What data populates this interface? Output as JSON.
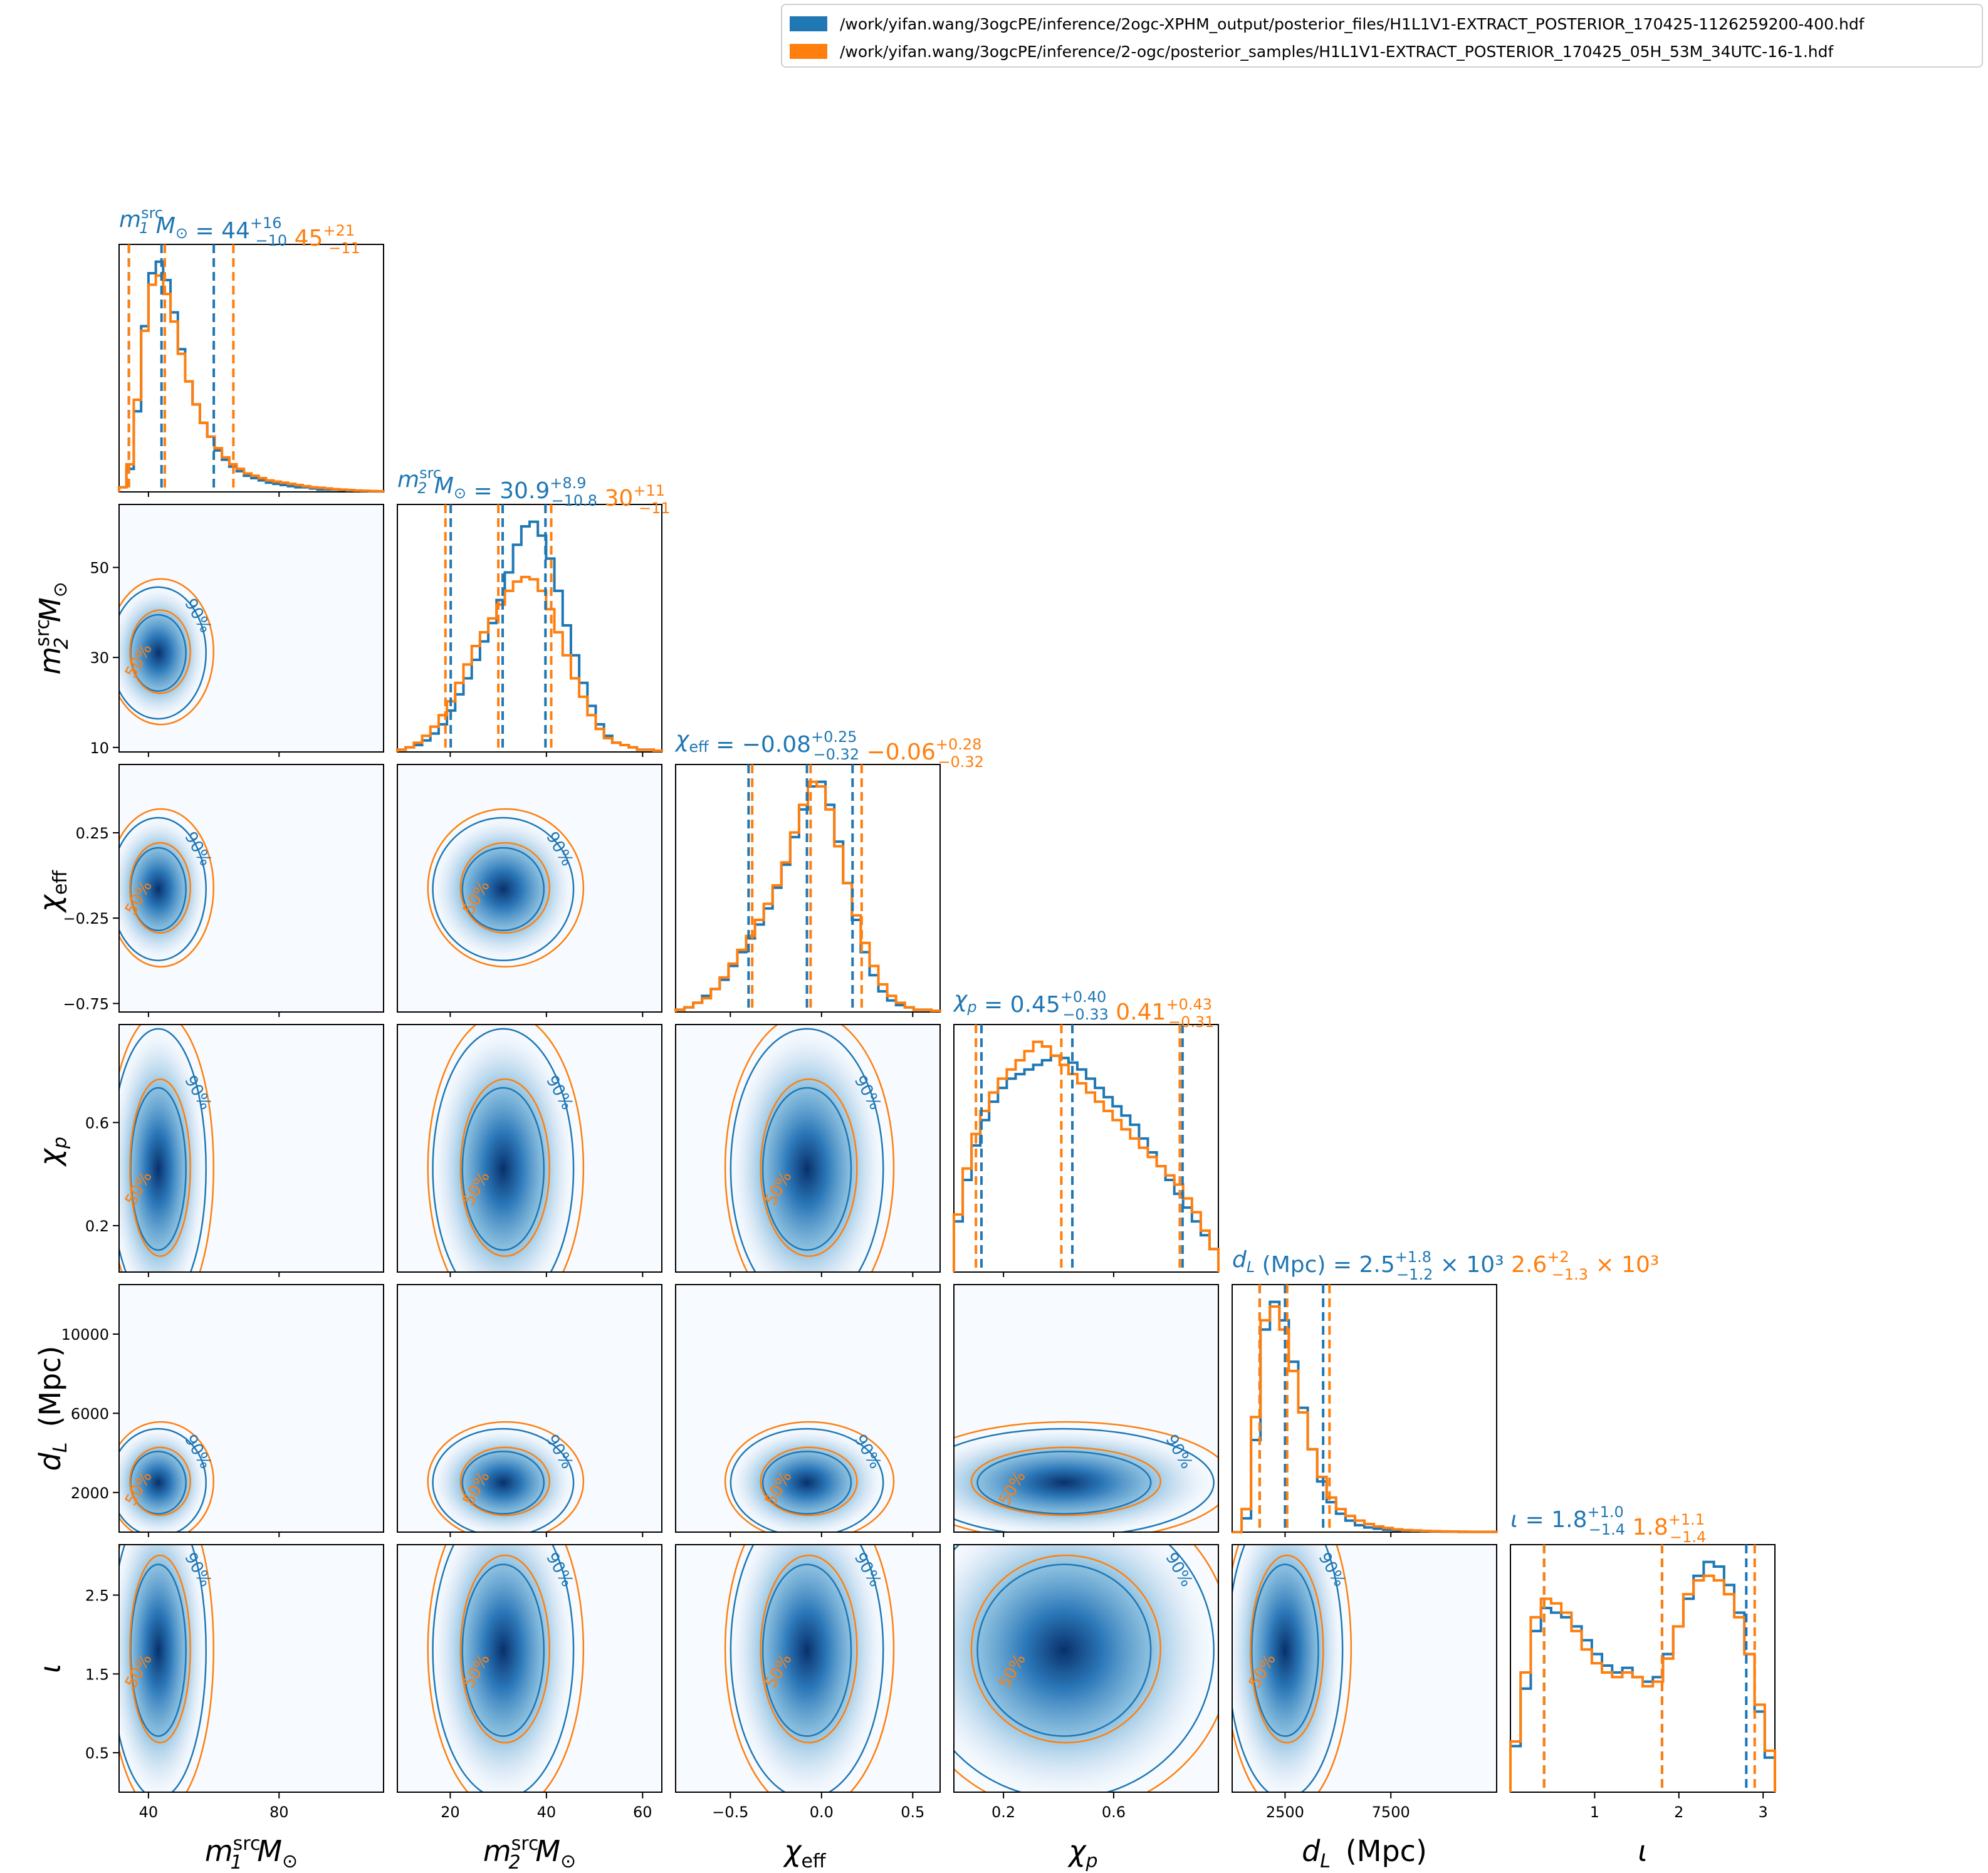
{
  "legend": {
    "items": [
      {
        "label": "/work/yifan.wang/3ogcPE/inference/2ogc-XPHM_output/posterior_files/H1L1V1-EXTRACT_POSTERIOR_170425-1126259200-400.hdf",
        "color": "#1f77b4"
      },
      {
        "label": "/work/yifan.wang/3ogcPE/inference/2-ogc/posterior_samples/H1L1V1-EXTRACT_POSTERIOR_170425_05H_53M_34UTC-16-1.hdf",
        "color": "#ff7f0e"
      }
    ]
  },
  "chart_data": {
    "type": "corner",
    "colors": {
      "blue": "#1f77b4",
      "orange": "#ff7f0e"
    },
    "params": [
      {
        "key": "m1",
        "label_main": "m",
        "label_sub": "1",
        "label_sup": "src",
        "label_tail": "M",
        "tail_sub": "⊙",
        "range": [
          31,
          112
        ],
        "ticks": [
          40,
          80
        ],
        "tick_labels": [
          "40",
          "80"
        ],
        "title_blue": {
          "prefix": "= 44",
          "sup": "+16",
          "sub": "−10"
        },
        "title_orange": {
          "prefix": "45",
          "sup": "+21",
          "sub": "−11"
        },
        "blue": {
          "median": 44,
          "lo": 34,
          "hi": 60
        },
        "orange": {
          "median": 45,
          "lo": 34,
          "hi": 66
        }
      },
      {
        "key": "m2",
        "label_main": "m",
        "label_sub": "2",
        "label_sup": "src",
        "label_tail": "M",
        "tail_sub": "⊙",
        "range": [
          9,
          64
        ],
        "ticks": [
          10,
          30,
          50
        ],
        "tick_labels": [
          "10",
          "30",
          "50"
        ],
        "xticks": [
          20,
          40,
          60
        ],
        "xtick_labels": [
          "20",
          "40",
          "60"
        ],
        "title_blue": {
          "prefix": "= 30.9",
          "sup": "+8.9",
          "sub": "−10.8"
        },
        "title_orange": {
          "prefix": "30",
          "sup": "+11",
          "sub": "−11"
        },
        "blue": {
          "median": 30.9,
          "lo": 20.1,
          "hi": 39.8
        },
        "orange": {
          "median": 30,
          "lo": 19,
          "hi": 41
        }
      },
      {
        "key": "chi_eff",
        "label_main": "χ",
        "label_sub": "eff",
        "label_sup": "",
        "label_tail": "",
        "tail_sub": "",
        "range": [
          -0.8,
          0.65
        ],
        "ticks": [
          -0.75,
          -0.25,
          0.25
        ],
        "tick_labels": [
          "−0.75",
          "−0.25",
          "0.25"
        ],
        "xticks": [
          -0.5,
          0.0,
          0.5
        ],
        "xtick_labels": [
          "−0.5",
          "0.0",
          "0.5"
        ],
        "title_blue": {
          "prefix": "= −0.08",
          "sup": "+0.25",
          "sub": "−0.32"
        },
        "title_orange": {
          "prefix": "−0.06",
          "sup": "+0.28",
          "sub": "−0.32"
        },
        "blue": {
          "median": -0.08,
          "lo": -0.4,
          "hi": 0.17
        },
        "orange": {
          "median": -0.06,
          "lo": -0.38,
          "hi": 0.22
        }
      },
      {
        "key": "chi_p",
        "label_main": "χ",
        "label_sub": "p",
        "label_sup": "",
        "label_tail": "",
        "tail_sub": "",
        "range": [
          0.02,
          0.98
        ],
        "ticks": [
          0.2,
          0.6
        ],
        "tick_labels": [
          "0.2",
          "0.6"
        ],
        "title_blue": {
          "prefix": "= 0.45",
          "sup": "+0.40",
          "sub": "−0.33"
        },
        "title_orange": {
          "prefix": "0.41",
          "sup": "+0.43",
          "sub": "−0.31"
        },
        "blue": {
          "median": 0.45,
          "lo": 0.12,
          "hi": 0.85
        },
        "orange": {
          "median": 0.41,
          "lo": 0.1,
          "hi": 0.84
        }
      },
      {
        "key": "dL",
        "label_main": "d",
        "label_sub": "L",
        "label_sup": "",
        "label_tail": "(Mpc)",
        "tail_sub": "",
        "range": [
          0,
          12500
        ],
        "ticks": [
          2000,
          6000,
          10000
        ],
        "tick_labels": [
          "2000",
          "6000",
          "10000"
        ],
        "xticks": [
          2500,
          7500
        ],
        "xtick_labels": [
          "2500",
          "7500"
        ],
        "title_blue": {
          "prefix": "(Mpc) = 2.5",
          "sup": "+1.8",
          "sub": "−1.2",
          "suffix": "× 10³"
        },
        "title_orange": {
          "prefix": "2.6",
          "sup": "+2",
          "sub": "−1.3",
          "suffix": "× 10³"
        },
        "blue": {
          "median": 2500,
          "lo": 1300,
          "hi": 4300
        },
        "orange": {
          "median": 2600,
          "lo": 1300,
          "hi": 4600
        }
      },
      {
        "key": "iota",
        "label_main": "ι",
        "label_sub": "",
        "label_sup": "",
        "label_tail": "",
        "tail_sub": "",
        "range": [
          0,
          3.14
        ],
        "ticks": [
          0.5,
          1.5,
          2.5
        ],
        "tick_labels": [
          "0.5",
          "1.5",
          "2.5"
        ],
        "xticks": [
          1,
          2,
          3
        ],
        "xtick_labels": [
          "1",
          "2",
          "3"
        ],
        "title_blue": {
          "prefix": "= 1.8",
          "sup": "+1.0",
          "sub": "−1.4"
        },
        "title_orange": {
          "prefix": "1.8",
          "sup": "+1.1",
          "sub": "−1.4"
        },
        "blue": {
          "median": 1.8,
          "lo": 0.4,
          "hi": 2.8
        },
        "orange": {
          "median": 1.8,
          "lo": 0.4,
          "hi": 2.9
        }
      }
    ],
    "hist_blue": {
      "m1": [
        0.02,
        0.1,
        0.35,
        0.72,
        0.95,
        1.0,
        0.92,
        0.78,
        0.62,
        0.48,
        0.38,
        0.3,
        0.24,
        0.18,
        0.14,
        0.11,
        0.09,
        0.07,
        0.06,
        0.05,
        0.04,
        0.035,
        0.03,
        0.025,
        0.02,
        0.02,
        0.015,
        0.01,
        0.01,
        0.01,
        0.008,
        0.006,
        0.005,
        0.004,
        0.003,
        0.002
      ],
      "m2": [
        0.01,
        0.02,
        0.03,
        0.05,
        0.08,
        0.12,
        0.18,
        0.25,
        0.32,
        0.4,
        0.48,
        0.56,
        0.66,
        0.78,
        0.9,
        0.98,
        1.0,
        0.94,
        0.84,
        0.7,
        0.55,
        0.42,
        0.3,
        0.2,
        0.12,
        0.07,
        0.04,
        0.03,
        0.02,
        0.01,
        0.01,
        0.005
      ],
      "chi_eff": [
        0.01,
        0.02,
        0.04,
        0.07,
        0.1,
        0.14,
        0.2,
        0.26,
        0.32,
        0.38,
        0.45,
        0.54,
        0.64,
        0.76,
        0.88,
        0.98,
        1.0,
        0.9,
        0.74,
        0.56,
        0.4,
        0.26,
        0.16,
        0.09,
        0.05,
        0.03,
        0.02,
        0.01,
        0.01,
        0.005
      ],
      "chi_p": [
        0.22,
        0.4,
        0.55,
        0.66,
        0.74,
        0.8,
        0.84,
        0.86,
        0.88,
        0.9,
        0.92,
        0.94,
        0.93,
        0.91,
        0.88,
        0.84,
        0.8,
        0.76,
        0.72,
        0.68,
        0.64,
        0.58,
        0.52,
        0.46,
        0.4,
        0.34,
        0.28,
        0.22,
        0.16,
        0.1
      ],
      "dL": [
        0.0,
        0.06,
        0.4,
        0.88,
        1.0,
        0.92,
        0.74,
        0.54,
        0.36,
        0.22,
        0.13,
        0.08,
        0.05,
        0.03,
        0.02,
        0.015,
        0.01,
        0.008,
        0.006,
        0.005,
        0.004,
        0.003,
        0.002,
        0.002,
        0.001,
        0.001,
        0.001,
        0.001
      ],
      "iota": [
        0.2,
        0.45,
        0.7,
        0.8,
        0.78,
        0.76,
        0.72,
        0.66,
        0.6,
        0.55,
        0.52,
        0.54,
        0.5,
        0.48,
        0.5,
        0.6,
        0.72,
        0.84,
        0.94,
        1.0,
        0.98,
        0.9,
        0.78,
        0.6,
        0.35,
        0.15
      ]
    },
    "hist_orange": {
      "m1": [
        0.02,
        0.12,
        0.4,
        0.7,
        0.9,
        0.94,
        0.86,
        0.74,
        0.6,
        0.48,
        0.38,
        0.3,
        0.24,
        0.19,
        0.15,
        0.12,
        0.1,
        0.08,
        0.07,
        0.06,
        0.05,
        0.045,
        0.04,
        0.035,
        0.03,
        0.025,
        0.02,
        0.018,
        0.015,
        0.012,
        0.01,
        0.008,
        0.006,
        0.005,
        0.004,
        0.003
      ],
      "m2": [
        0.01,
        0.02,
        0.04,
        0.07,
        0.11,
        0.16,
        0.22,
        0.3,
        0.38,
        0.46,
        0.52,
        0.58,
        0.64,
        0.7,
        0.74,
        0.76,
        0.75,
        0.7,
        0.62,
        0.52,
        0.42,
        0.32,
        0.24,
        0.16,
        0.1,
        0.06,
        0.04,
        0.03,
        0.02,
        0.01,
        0.01,
        0.005
      ],
      "chi_eff": [
        0.01,
        0.02,
        0.04,
        0.06,
        0.1,
        0.15,
        0.21,
        0.27,
        0.33,
        0.4,
        0.47,
        0.55,
        0.65,
        0.78,
        0.9,
        1.0,
        0.98,
        0.88,
        0.72,
        0.56,
        0.42,
        0.3,
        0.2,
        0.12,
        0.07,
        0.04,
        0.02,
        0.01,
        0.01,
        0.005
      ],
      "chi_p": [
        0.25,
        0.45,
        0.6,
        0.7,
        0.78,
        0.84,
        0.88,
        0.92,
        0.96,
        1.0,
        0.98,
        0.94,
        0.9,
        0.86,
        0.82,
        0.78,
        0.74,
        0.7,
        0.66,
        0.62,
        0.58,
        0.54,
        0.5,
        0.46,
        0.42,
        0.38,
        0.32,
        0.26,
        0.18,
        0.1
      ],
      "dL": [
        0.0,
        0.1,
        0.5,
        0.92,
        0.98,
        0.88,
        0.7,
        0.52,
        0.36,
        0.24,
        0.15,
        0.1,
        0.07,
        0.05,
        0.035,
        0.025,
        0.018,
        0.012,
        0.009,
        0.007,
        0.005,
        0.004,
        0.003,
        0.002,
        0.002,
        0.001,
        0.001,
        0.001
      ],
      "iota": [
        0.22,
        0.52,
        0.76,
        0.84,
        0.82,
        0.78,
        0.7,
        0.62,
        0.56,
        0.52,
        0.5,
        0.52,
        0.5,
        0.46,
        0.48,
        0.58,
        0.72,
        0.86,
        0.92,
        0.94,
        0.92,
        0.86,
        0.76,
        0.6,
        0.38,
        0.18
      ]
    },
    "contour_labels": {
      "inner": "50%",
      "outer": "90%"
    }
  }
}
